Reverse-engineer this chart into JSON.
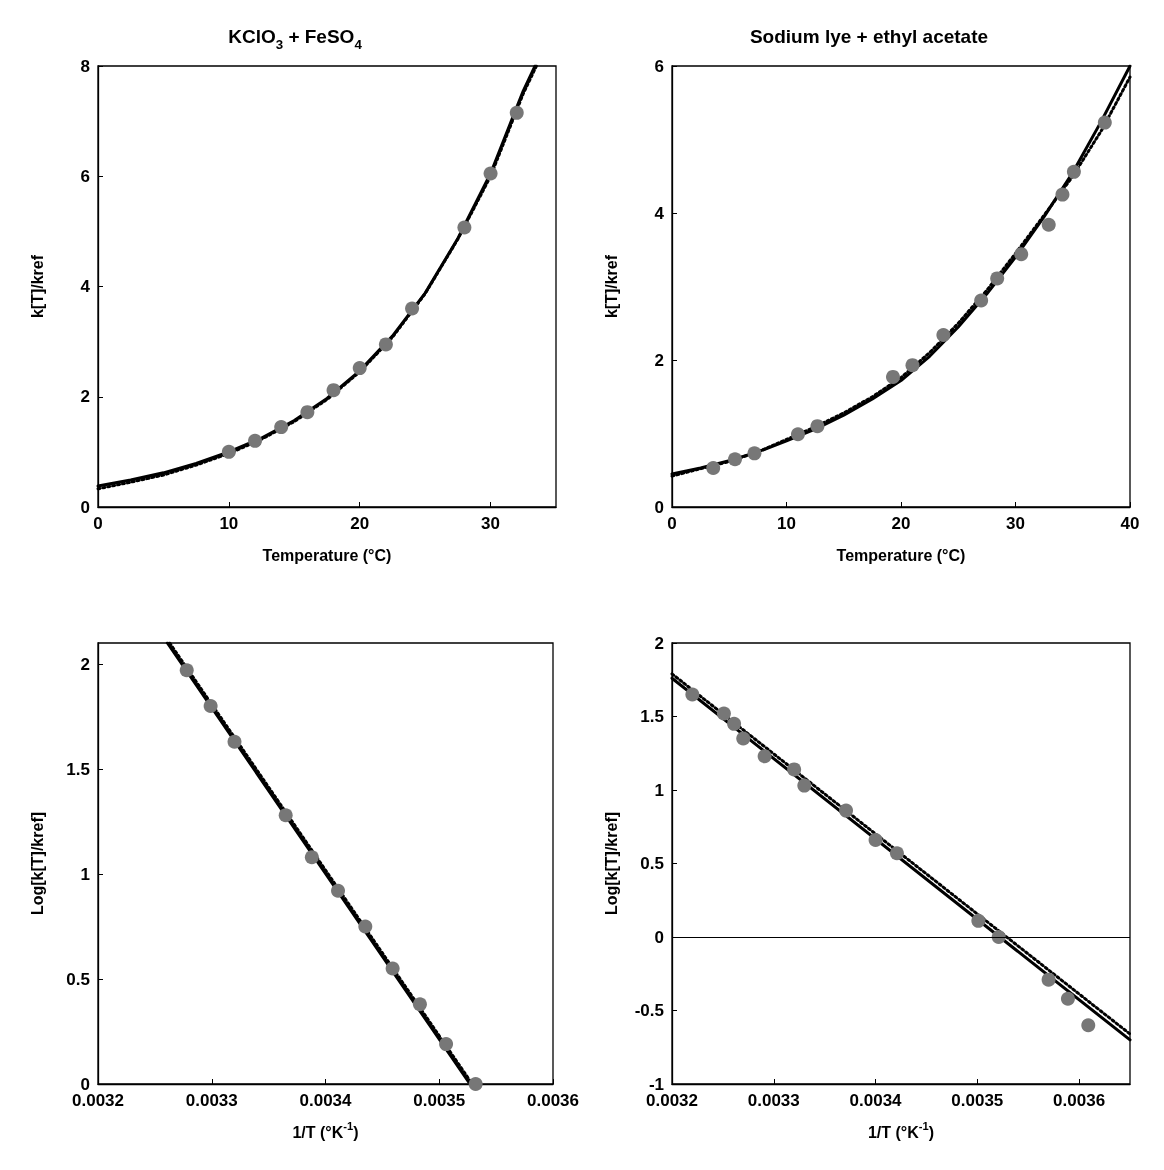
{
  "chart_data": [
    {
      "type": "scatter",
      "title": "KClO$_{3}$ + FeSO$_{4}$",
      "xlabel": "Temperature (°C)",
      "ylabel": "k[T]/kref",
      "xlim": [
        0,
        35
      ],
      "xticks": [
        0,
        10,
        20,
        30
      ],
      "ylim": [
        0,
        8
      ],
      "yticks": [
        0,
        2,
        4,
        6,
        8
      ],
      "grid": false,
      "series": [
        {
          "type": "line",
          "marker": "none",
          "color": "#000000",
          "line_style": "dotted",
          "x": [
            0,
            2.5,
            5,
            7.5,
            10,
            12.5,
            15,
            17.5,
            20,
            22.5,
            25,
            27.5,
            30,
            32.5,
            33.5
          ],
          "values": [
            0.33,
            0.45,
            0.58,
            0.76,
            0.97,
            1.23,
            1.55,
            1.95,
            2.45,
            3.08,
            3.87,
            4.86,
            6.0,
            7.5,
            8.0
          ]
        },
        {
          "type": "line",
          "marker": "none",
          "color": "#000000",
          "line_style": "solid",
          "x": [
            0,
            2.5,
            5,
            7.5,
            10,
            12.5,
            15,
            17.5,
            20,
            22.5,
            25,
            27.5,
            30,
            32.5,
            33.4
          ],
          "values": [
            0.38,
            0.49,
            0.62,
            0.79,
            1.0,
            1.25,
            1.57,
            1.97,
            2.47,
            3.1,
            3.88,
            4.87,
            6.05,
            7.55,
            8.0
          ]
        },
        {
          "marker": "circle",
          "color": "#777777",
          "x": [
            10,
            12,
            14,
            16,
            18,
            20,
            22,
            24,
            28,
            30,
            32
          ],
          "values": [
            1.0,
            1.2,
            1.45,
            1.72,
            2.12,
            2.52,
            2.95,
            3.6,
            5.07,
            6.05,
            7.15
          ]
        }
      ]
    },
    {
      "type": "scatter",
      "title": "Sodium lye + ethyl acetate",
      "xlabel": "Temperature (°C)",
      "ylabel": "k[T]/kref",
      "xlim": [
        0,
        40
      ],
      "xticks": [
        0,
        10,
        20,
        30,
        40
      ],
      "ylim": [
        0,
        6
      ],
      "yticks": [
        0,
        2,
        4,
        6
      ],
      "grid": false,
      "series": [
        {
          "type": "line",
          "marker": "none",
          "color": "#000000",
          "line_style": "dotted",
          "x": [
            0,
            2.5,
            5,
            7.5,
            10,
            12.5,
            15,
            17.5,
            20,
            22.5,
            25,
            27.5,
            30,
            32.5,
            35,
            37.5,
            40
          ],
          "values": [
            0.42,
            0.52,
            0.62,
            0.75,
            0.92,
            1.09,
            1.28,
            1.5,
            1.76,
            2.1,
            2.5,
            2.95,
            3.45,
            3.97,
            4.5,
            5.12,
            5.85
          ]
        },
        {
          "type": "line",
          "marker": "none",
          "color": "#000000",
          "line_style": "solid",
          "x": [
            0,
            2.5,
            5,
            7.5,
            10,
            12.5,
            15,
            17.5,
            20,
            22.5,
            25,
            27.5,
            30,
            32.5,
            35,
            37.5,
            40
          ],
          "values": [
            0.45,
            0.53,
            0.63,
            0.75,
            0.9,
            1.06,
            1.25,
            1.47,
            1.72,
            2.05,
            2.45,
            2.9,
            3.4,
            3.95,
            4.55,
            5.25,
            6.0
          ]
        },
        {
          "marker": "circle",
          "color": "#777777",
          "x": [
            3.6,
            5.5,
            7.2,
            11.0,
            12.7,
            19.3,
            21.0,
            23.7,
            27.0,
            28.4,
            30.5,
            32.9,
            34.1,
            35.1,
            37.8
          ],
          "values": [
            0.53,
            0.65,
            0.73,
            0.99,
            1.1,
            1.77,
            1.93,
            2.34,
            2.81,
            3.11,
            3.44,
            3.84,
            4.25,
            4.56,
            5.23
          ]
        }
      ]
    },
    {
      "type": "scatter",
      "xlabel": "1/T (°K$^{-1}$)",
      "ylabel": "Log[k[T]/kref]",
      "xlim": [
        0.0032,
        0.0036
      ],
      "xticks": [
        0.0032,
        0.0033,
        0.0034,
        0.0035,
        0.0036
      ],
      "ylim": [
        0,
        2.1
      ],
      "yticks": [
        0,
        0.5,
        1,
        1.5,
        2
      ],
      "grid": false,
      "series": [
        {
          "type": "line",
          "marker": "none",
          "color": "#000000",
          "line_style": "dotted",
          "x": [
            0.003263,
            0.003529
          ],
          "values": [
            2.1,
            0
          ]
        },
        {
          "type": "line",
          "marker": "none",
          "color": "#000000",
          "line_style": "solid",
          "x": [
            0.003261,
            0.003527
          ],
          "values": [
            2.1,
            0
          ]
        },
        {
          "marker": "circle",
          "color": "#777777",
          "x": [
            0.003278,
            0.003299,
            0.00332,
            0.003365,
            0.003388,
            0.003411,
            0.003435,
            0.003459,
            0.003483,
            0.003506,
            0.003532
          ],
          "values": [
            1.97,
            1.8,
            1.63,
            1.28,
            1.08,
            0.92,
            0.75,
            0.55,
            0.38,
            0.19,
            0.0
          ]
        }
      ]
    },
    {
      "type": "scatter",
      "xlabel": "1/T (°K$^{-1}$)",
      "ylabel": "Log[k[T]/kref]",
      "xlim": [
        0.0032,
        0.00365
      ],
      "xticks": [
        0.0032,
        0.0033,
        0.0034,
        0.0035,
        0.0036
      ],
      "ylim": [
        -1,
        2
      ],
      "yticks": [
        -1,
        -0.5,
        0,
        0.5,
        1,
        1.5,
        2
      ],
      "grid": false,
      "ref_lines": [
        {
          "axis": "y",
          "value": 0,
          "color": "#000000"
        }
      ],
      "series": [
        {
          "type": "line",
          "marker": "none",
          "color": "#000000",
          "line_style": "dotted",
          "x": [
            0.0032,
            0.00365
          ],
          "values": [
            1.79,
            -0.66
          ]
        },
        {
          "type": "line",
          "marker": "none",
          "color": "#000000",
          "line_style": "solid",
          "x": [
            0.0032,
            0.00365
          ],
          "values": [
            1.76,
            -0.7
          ]
        },
        {
          "marker": "circle",
          "color": "#777777",
          "x": [
            0.00322,
            0.003251,
            0.003261,
            0.00327,
            0.003291,
            0.00332,
            0.00333,
            0.003371,
            0.0034,
            0.003421,
            0.003501,
            0.003521,
            0.00357,
            0.003589,
            0.003609
          ],
          "values": [
            1.65,
            1.52,
            1.45,
            1.35,
            1.23,
            1.14,
            1.03,
            0.86,
            0.66,
            0.57,
            0.11,
            0.0,
            -0.29,
            -0.42,
            -0.6
          ]
        }
      ]
    }
  ]
}
